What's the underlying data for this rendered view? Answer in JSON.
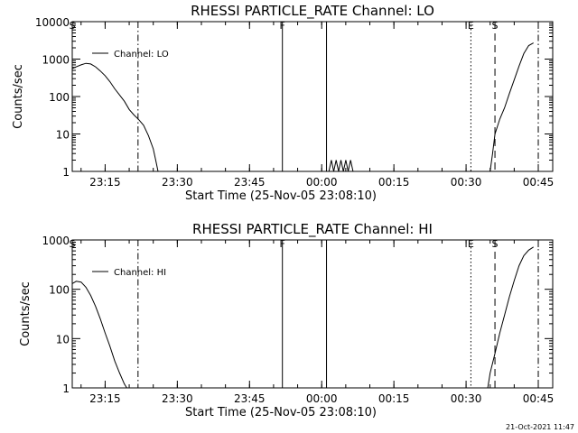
{
  "chart_data": [
    {
      "type": "line",
      "title": "RHESSI PARTICLE_RATE Channel: LO",
      "xlabel": "Start Time (25-Nov-05 23:08:10)",
      "ylabel": "Counts/sec",
      "yscale": "log",
      "ylim": [
        1,
        10000
      ],
      "xlim": [
        "23:08:10",
        "00:48:00"
      ],
      "x_ticks": [
        "23:15",
        "23:30",
        "23:45",
        "00:00",
        "00:15",
        "00:30",
        "00:45"
      ],
      "y_ticks": [
        "1",
        "10",
        "100",
        "1000",
        "10000"
      ],
      "grid": false,
      "legend": "top-left",
      "series": [
        {
          "name": "Channel: LO",
          "points": [
            [
              "23:08:10",
              560
            ],
            [
              "23:09:00",
              620
            ],
            [
              "23:10:00",
              700
            ],
            [
              "23:11:00",
              770
            ],
            [
              "23:12:00",
              740
            ],
            [
              "23:13:00",
              620
            ],
            [
              "23:14:00",
              480
            ],
            [
              "23:15:00",
              360
            ],
            [
              "23:16:00",
              250
            ],
            [
              "23:17:00",
              160
            ],
            [
              "23:18:00",
              110
            ],
            [
              "23:19:00",
              75
            ],
            [
              "23:20:00",
              45
            ],
            [
              "23:21:00",
              32
            ],
            [
              "23:22:00",
              24
            ],
            [
              "23:23:00",
              17
            ],
            [
              "23:24:00",
              9
            ],
            [
              "23:25:00",
              4
            ],
            [
              "23:25:30",
              2
            ],
            [
              "23:26:00",
              1
            ]
          ],
          "segments": [
            [
              [
                "00:01:30",
                1
              ],
              [
                "00:02:00",
                2
              ],
              [
                "00:02:30",
                1
              ],
              [
                "00:03:00",
                2
              ],
              [
                "00:03:30",
                1
              ],
              [
                "00:04:00",
                2
              ],
              [
                "00:04:30",
                1
              ],
              [
                "00:05:00",
                2
              ],
              [
                "00:05:30",
                1
              ],
              [
                "00:06:00",
                2
              ],
              [
                "00:06:30",
                1
              ]
            ],
            [
              [
                "00:35:00",
                1
              ],
              [
                "00:35:30",
                3
              ],
              [
                "00:36:00",
                10
              ],
              [
                "00:37:00",
                25
              ],
              [
                "00:38:00",
                50
              ],
              [
                "00:39:00",
                120
              ],
              [
                "00:40:00",
                280
              ],
              [
                "00:41:00",
                650
              ],
              [
                "00:42:00",
                1400
              ],
              [
                "00:43:00",
                2300
              ],
              [
                "00:44:00",
                2700
              ]
            ]
          ]
        }
      ],
      "markers": [
        {
          "label": "S",
          "time": "23:08:10",
          "style": "none"
        },
        {
          "label": "",
          "time": "23:21:50",
          "style": "dashdot"
        },
        {
          "label": "F",
          "time": "23:51:50",
          "style": "solid"
        },
        {
          "label": "",
          "time": "00:01:00",
          "style": "solid"
        },
        {
          "label": "E",
          "time": "00:31:00",
          "style": "dotted"
        },
        {
          "label": "S",
          "time": "00:36:00",
          "style": "dashed"
        },
        {
          "label": "",
          "time": "00:45:00",
          "style": "dashdot"
        }
      ]
    },
    {
      "type": "line",
      "title": "RHESSI PARTICLE_RATE Channel: HI",
      "xlabel": "Start Time (25-Nov-05 23:08:10)",
      "ylabel": "Counts/sec",
      "yscale": "log",
      "ylim": [
        1,
        1000
      ],
      "xlim": [
        "23:08:10",
        "00:48:00"
      ],
      "x_ticks": [
        "23:15",
        "23:30",
        "23:45",
        "00:00",
        "00:15",
        "00:30",
        "00:45"
      ],
      "y_ticks": [
        "1",
        "10",
        "100",
        "1000"
      ],
      "grid": false,
      "legend": "top-left",
      "series": [
        {
          "name": "Channel: HI",
          "points": [
            [
              "23:08:10",
              130
            ],
            [
              "23:09:00",
              145
            ],
            [
              "23:10:00",
              140
            ],
            [
              "23:11:00",
              110
            ],
            [
              "23:12:00",
              75
            ],
            [
              "23:13:00",
              45
            ],
            [
              "23:14:00",
              25
            ],
            [
              "23:15:00",
              13
            ],
            [
              "23:16:00",
              7
            ],
            [
              "23:17:00",
              3.5
            ],
            [
              "23:18:00",
              2
            ],
            [
              "23:19:00",
              1.2
            ],
            [
              "23:19:30",
              1
            ]
          ],
          "segments": [
            [
              [
                "00:34:30",
                1
              ],
              [
                "00:35:00",
                2
              ],
              [
                "00:36:00",
                5
              ],
              [
                "00:37:00",
                13
              ],
              [
                "00:38:00",
                30
              ],
              [
                "00:39:00",
                70
              ],
              [
                "00:40:00",
                150
              ],
              [
                "00:41:00",
                300
              ],
              [
                "00:42:00",
                480
              ],
              [
                "00:43:00",
                620
              ],
              [
                "00:44:00",
                720
              ]
            ]
          ]
        }
      ],
      "markers": [
        {
          "label": "S",
          "time": "23:08:10",
          "style": "none"
        },
        {
          "label": "",
          "time": "23:21:50",
          "style": "dashdot"
        },
        {
          "label": "F",
          "time": "23:51:50",
          "style": "solid"
        },
        {
          "label": "",
          "time": "00:01:00",
          "style": "solid"
        },
        {
          "label": "E",
          "time": "00:31:00",
          "style": "dotted"
        },
        {
          "label": "S",
          "time": "00:36:00",
          "style": "dashed"
        },
        {
          "label": "",
          "time": "00:45:00",
          "style": "dashdot"
        }
      ]
    }
  ],
  "footer": {
    "timestamp": "21-Oct-2021 11:47"
  }
}
